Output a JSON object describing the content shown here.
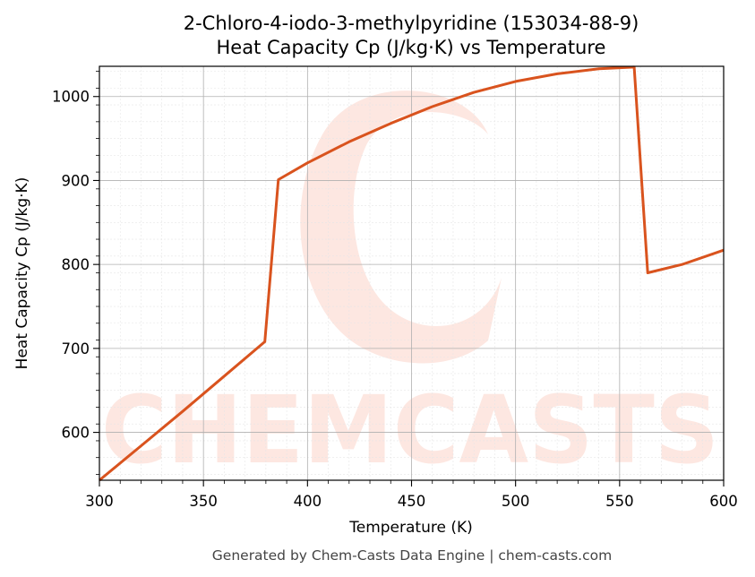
{
  "title_line1": "2-Chloro-4-iodo-3-methylpyridine (153034-88-9)",
  "title_line2": "Heat Capacity Cp (J/kg·K) vs Temperature",
  "footer": "Generated by Chem-Casts Data Engine | chem-casts.com",
  "watermark": {
    "text": "CHEMCASTS",
    "color": "#fde3dc"
  },
  "colors": {
    "line": "#d9531e",
    "grid_major": "#b0b0b0",
    "grid_minor": "#e6e6e6"
  },
  "chart_data": {
    "type": "line",
    "title": "2-Chloro-4-iodo-3-methylpyridine (153034-88-9) Heat Capacity Cp (J/kg·K) vs Temperature",
    "xlabel": "Temperature (K)",
    "ylabel": "Heat Capacity Cp (J/kg·K)",
    "xlim": [
      300,
      600
    ],
    "ylim": [
      543,
      1036
    ],
    "x_ticks": [
      300,
      350,
      400,
      450,
      500,
      550,
      600
    ],
    "y_ticks": [
      600,
      700,
      800,
      900,
      1000
    ],
    "grid": true,
    "series": [
      {
        "color": "#d9531e",
        "points": [
          [
            300,
            543
          ],
          [
            320,
            584
          ],
          [
            340,
            625
          ],
          [
            360,
            667
          ],
          [
            379.5,
            708
          ],
          [
            386,
            901
          ],
          [
            400,
            921
          ],
          [
            420,
            946
          ],
          [
            440,
            968
          ],
          [
            460,
            988
          ],
          [
            480,
            1005
          ],
          [
            500,
            1018
          ],
          [
            520,
            1027
          ],
          [
            540,
            1033
          ],
          [
            557,
            1035
          ],
          [
            563.5,
            790
          ],
          [
            580,
            800
          ],
          [
            600,
            817
          ]
        ]
      }
    ]
  }
}
